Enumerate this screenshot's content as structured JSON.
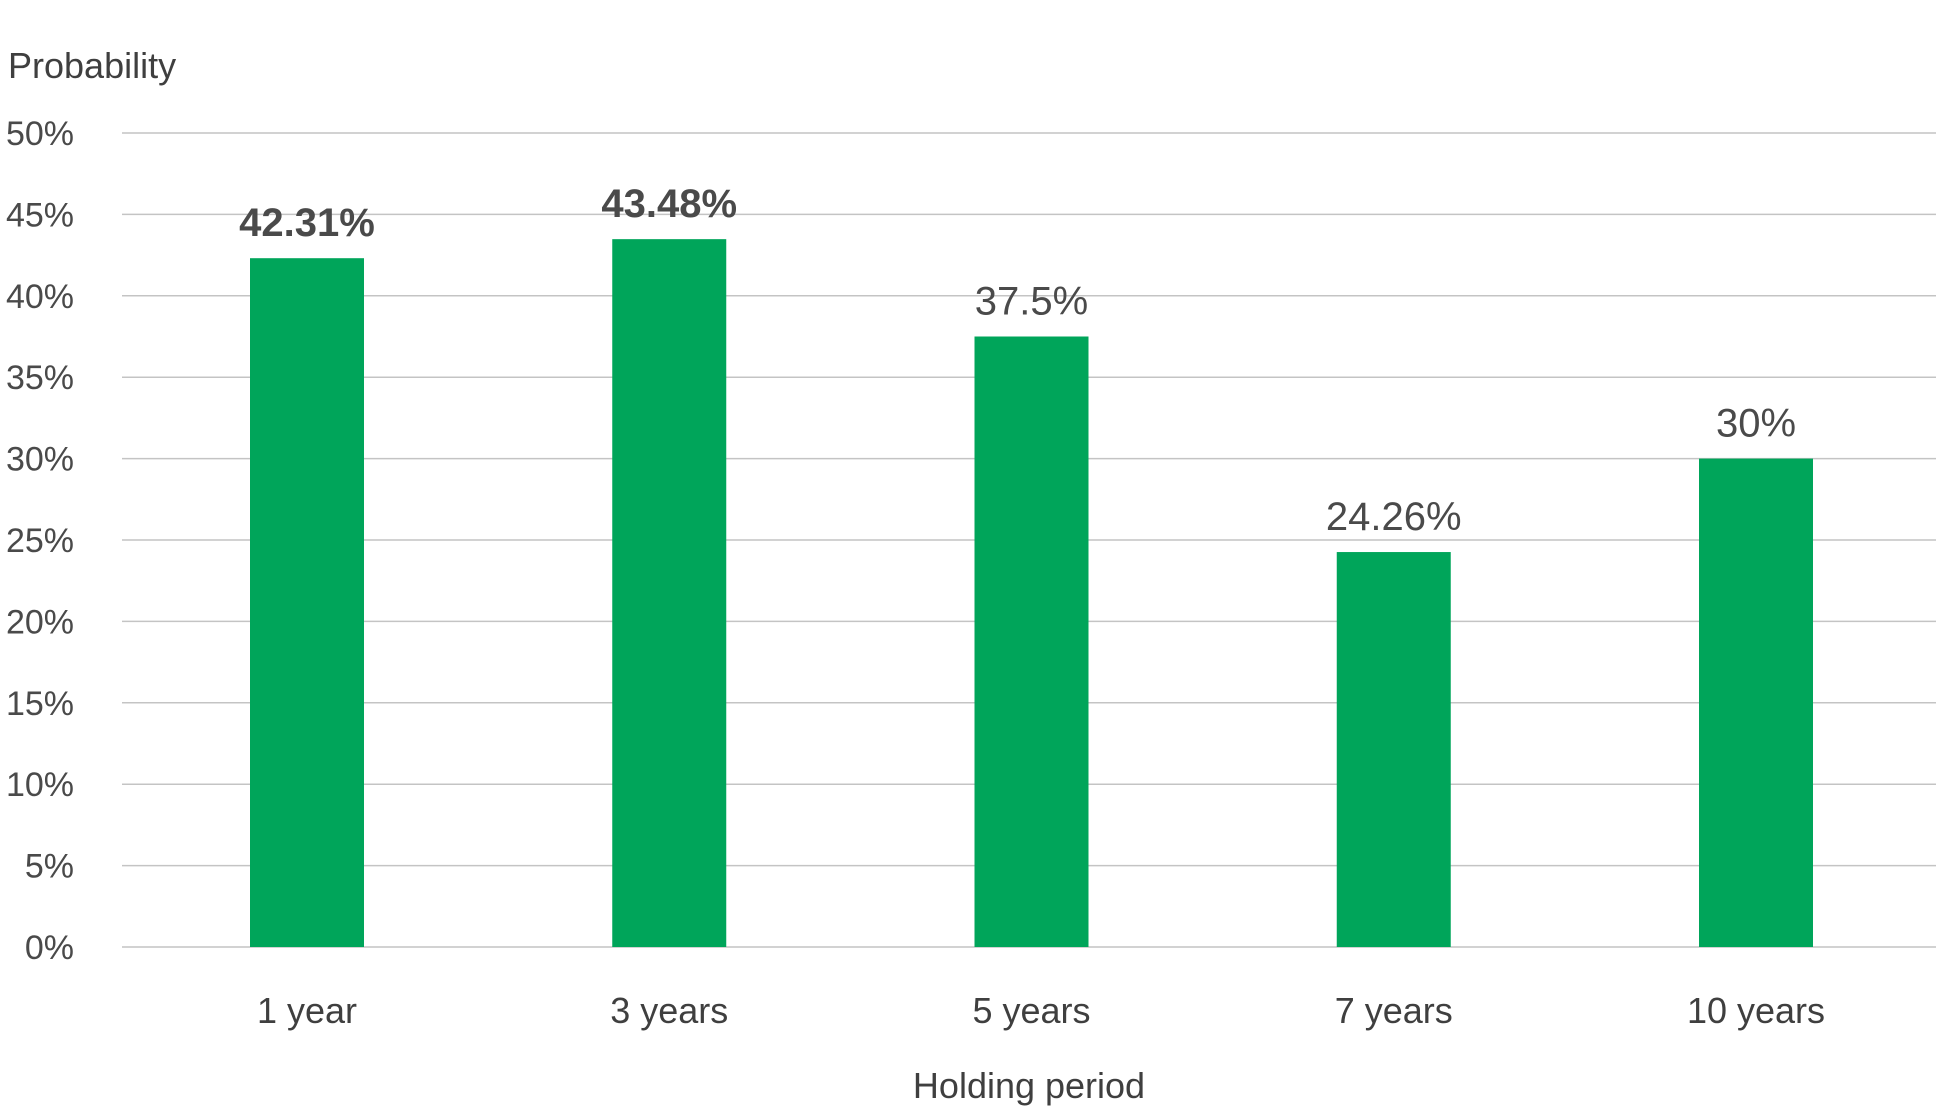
{
  "colors": {
    "bar": "#00a55a",
    "highlight_label": "#00a55a",
    "grid": "#c4c4c4",
    "text": "#4a4a4a"
  },
  "chart_data": {
    "type": "bar",
    "title": "",
    "xlabel": "Holding period",
    "ylabel": "Probability",
    "ylim": [
      0,
      50
    ],
    "ytick_step": 5,
    "ytick_labels": [
      "0%",
      "5%",
      "10%",
      "15%",
      "20%",
      "25%",
      "30%",
      "35%",
      "40%",
      "45%",
      "50%"
    ],
    "grid": true,
    "legend": "none",
    "categories": [
      "1 year",
      "3 years",
      "5 years",
      "7 years",
      "10 years"
    ],
    "values": [
      42.31,
      43.48,
      37.5,
      24.26,
      30
    ],
    "data_labels": [
      "42.31%",
      "43.48%",
      "37.5%",
      "24.26%",
      "30%"
    ],
    "highlighted": [
      true,
      true,
      false,
      false,
      false
    ]
  }
}
